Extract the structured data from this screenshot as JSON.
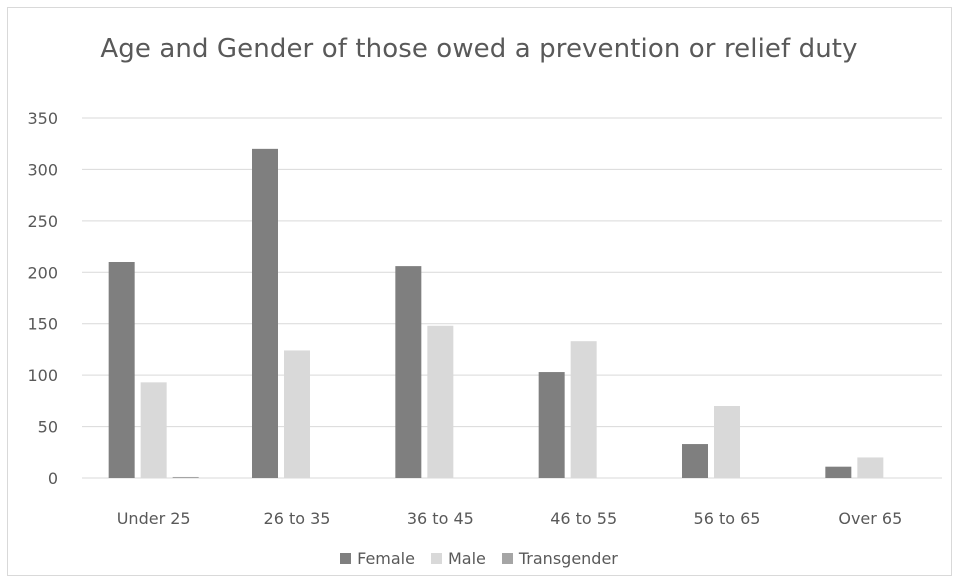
{
  "chart_data": {
    "type": "bar",
    "title": "Age and Gender of those owed a prevention or relief duty",
    "xlabel": "",
    "ylabel": "",
    "categories": [
      "Under 25",
      "26 to 35",
      "36 to 45",
      "46 to 55",
      "56 to 65",
      "Over 65"
    ],
    "series": [
      {
        "name": "Female",
        "color": "#7f7f7f",
        "values": [
          210,
          320,
          206,
          103,
          33,
          11
        ]
      },
      {
        "name": "Male",
        "color": "#d9d9d9",
        "values": [
          93,
          124,
          148,
          133,
          70,
          20
        ]
      },
      {
        "name": "Transgender",
        "color": "#a5a5a5",
        "values": [
          1,
          0,
          0,
          0,
          0,
          0
        ]
      }
    ],
    "ylim": [
      0,
      350
    ],
    "yticks": [
      "0",
      "50",
      "100",
      "150",
      "200",
      "250",
      "300",
      "350"
    ],
    "grid": true,
    "legend_position": "bottom"
  }
}
